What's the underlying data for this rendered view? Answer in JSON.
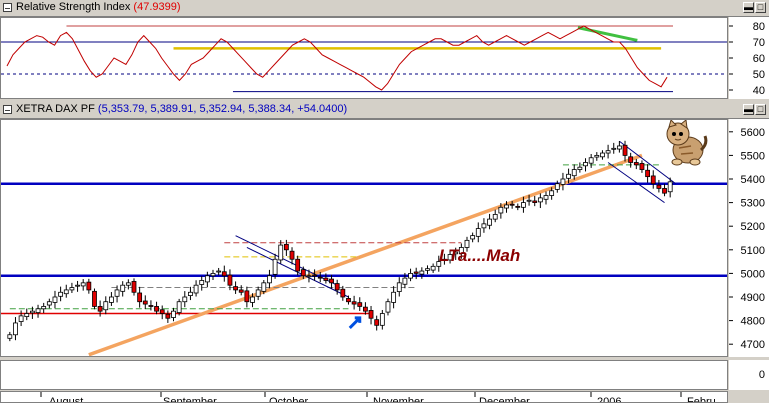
{
  "rsi_panel": {
    "title": "Relative Strength Index",
    "value": "(47.9399)",
    "y_ticks": [
      "80",
      "70",
      "60",
      "50",
      "40"
    ]
  },
  "price_panel": {
    "title": "XETRA DAX PF",
    "ohlc": "(5,353.79, 5,389.91, 5,352.94, 5,388.34, +54.0400)",
    "y_ticks": [
      "5600",
      "5500",
      "5400",
      "5300",
      "5200",
      "5100",
      "5000",
      "4900",
      "4800",
      "4700"
    ],
    "annotation": "LTa....Mah"
  },
  "volume_panel": {
    "y_ticks": [
      "0"
    ]
  },
  "x_axis": {
    "labels": [
      "August",
      "September",
      "October",
      "November",
      "December",
      "2006",
      "Febru"
    ]
  },
  "colors": {
    "up_candle": "#ffffff",
    "down_candle": "#e00000",
    "support_line": "#0000c0",
    "trend_line": "#f4a460",
    "rsi_line": "#c00000",
    "rsi_level": "#e0c000",
    "rsi_divergence": "#40c040"
  },
  "chart_data": {
    "type": "candlestick",
    "title": "XETRA DAX PF",
    "ylim": [
      4650,
      5650
    ],
    "rsi_ylim": [
      35,
      85
    ],
    "candles_close_approx": [
      4740,
      4790,
      4820,
      4830,
      4840,
      4850,
      4860,
      4880,
      4900,
      4920,
      4930,
      4940,
      4950,
      4960,
      4930,
      4860,
      4840,
      4880,
      4900,
      4930,
      4950,
      4960,
      4920,
      4880,
      4870,
      4860,
      4840,
      4830,
      4810,
      4840,
      4880,
      4900,
      4920,
      4950,
      4970,
      4990,
      5000,
      5010,
      4990,
      4950,
      4930,
      4920,
      4880,
      4900,
      4930,
      4960,
      4990,
      5060,
      5120,
      5100,
      5060,
      5010,
      4990,
      4990,
      4990,
      4980,
      4970,
      4960,
      4930,
      4900,
      4880,
      4870,
      4860,
      4840,
      4810,
      4780,
      4830,
      4880,
      4920,
      4960,
      4980,
      5000,
      5000,
      5010,
      5020,
      5030,
      5050,
      5060,
      5080,
      5090,
      5110,
      5140,
      5160,
      5190,
      5210,
      5230,
      5250,
      5280,
      5290,
      5290,
      5280,
      5300,
      5310,
      5300,
      5320,
      5330,
      5350,
      5380,
      5400,
      5420,
      5440,
      5450,
      5470,
      5490,
      5500,
      5510,
      5520,
      5530,
      5540,
      5500,
      5470,
      5460,
      5440,
      5410,
      5380,
      5360,
      5340,
      5388
    ],
    "rsi_approx": [
      55,
      62,
      66,
      70,
      72,
      74,
      73,
      70,
      68,
      74,
      76,
      72,
      65,
      58,
      52,
      48,
      50,
      55,
      60,
      58,
      56,
      62,
      70,
      74,
      70,
      66,
      60,
      55,
      50,
      46,
      50,
      56,
      58,
      60,
      64,
      68,
      72,
      70,
      66,
      62,
      58,
      54,
      50,
      48,
      52,
      56,
      60,
      64,
      68,
      70,
      72,
      70,
      66,
      62,
      60,
      58,
      56,
      54,
      52,
      50,
      48,
      45,
      42,
      40,
      44,
      50,
      56,
      60,
      64,
      66,
      68,
      70,
      72,
      72,
      70,
      68,
      68,
      70,
      72,
      74,
      70,
      68,
      70,
      72,
      74,
      72,
      70,
      68,
      70,
      72,
      74,
      76,
      74,
      72,
      74,
      76,
      78,
      80,
      78,
      76,
      74,
      72,
      70,
      70,
      66,
      60,
      54,
      50,
      46,
      44,
      42,
      48
    ]
  }
}
